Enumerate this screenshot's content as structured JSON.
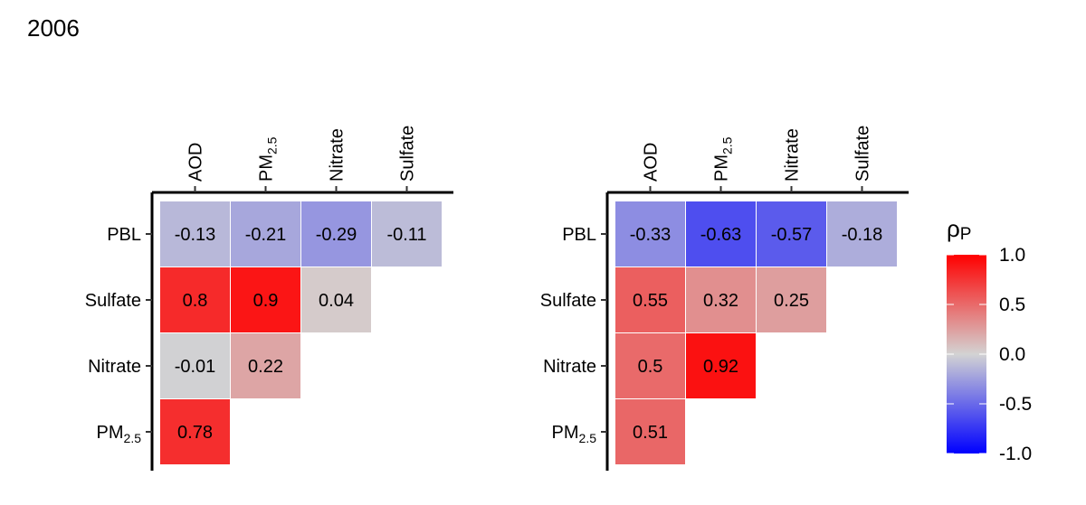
{
  "title": "2006",
  "chart_data": [
    {
      "type": "heatmap",
      "title": "",
      "columns": [
        "AOD",
        "PM2.5",
        "Nitrate",
        "Sulfate"
      ],
      "rows": [
        "PBL",
        "Sulfate",
        "Nitrate",
        "PM2.5"
      ],
      "values": [
        [
          -0.13,
          -0.21,
          -0.29,
          -0.11
        ],
        [
          0.8,
          0.9,
          0.04,
          null
        ],
        [
          -0.01,
          0.22,
          null,
          null
        ],
        [
          0.78,
          null,
          null,
          null
        ]
      ],
      "labels": [
        [
          "-0.13",
          "-0.21",
          "-0.29",
          "-0.11"
        ],
        [
          "0.8",
          "0.9",
          "0.04",
          null
        ],
        [
          "-0.01",
          "0.22",
          null,
          null
        ],
        [
          "0.78",
          null,
          null,
          null
        ]
      ]
    },
    {
      "type": "heatmap",
      "title": "",
      "columns": [
        "AOD",
        "PM2.5",
        "Nitrate",
        "Sulfate"
      ],
      "rows": [
        "PBL",
        "Sulfate",
        "Nitrate",
        "PM2.5"
      ],
      "values": [
        [
          -0.33,
          -0.63,
          -0.57,
          -0.18
        ],
        [
          0.55,
          0.32,
          0.25,
          null
        ],
        [
          0.5,
          0.92,
          null,
          null
        ],
        [
          0.51,
          null,
          null,
          null
        ]
      ],
      "labels": [
        [
          "-0.33",
          "-0.63",
          "-0.57",
          "-0.18"
        ],
        [
          "0.55",
          "0.32",
          "0.25",
          null
        ],
        [
          "0.5",
          "0.92",
          null,
          null
        ],
        [
          "0.51",
          null,
          null,
          null
        ]
      ]
    }
  ],
  "legend": {
    "title": "ρ",
    "title_sub": "P",
    "range": [
      -1.0,
      1.0
    ],
    "ticks": [
      "1.0",
      "0.5",
      "0.0",
      "-0.5",
      "-1.0"
    ],
    "tick_values": [
      1.0,
      0.5,
      0.0,
      -0.5,
      -1.0
    ],
    "colors": {
      "low": "#0000ff",
      "mid": "#d3d3d3",
      "high": "#ff0000"
    },
    "placement": "right"
  }
}
